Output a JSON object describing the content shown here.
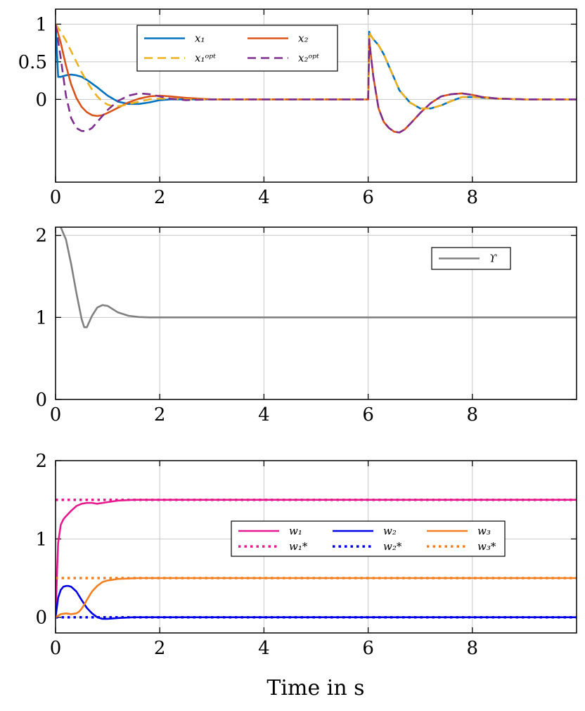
{
  "xlabel": "Time in s",
  "chart_data": [
    {
      "type": "line",
      "xlim": [
        0,
        10
      ],
      "ylim": [
        -1.1,
        1.2
      ],
      "xticks": [
        "0",
        "2",
        "4",
        "6",
        "8"
      ],
      "yticks": [
        "0",
        "0.5",
        "1"
      ],
      "grid": true,
      "legend_position": "top-center",
      "legend_columns": 2,
      "series": [
        {
          "name": "x₁",
          "color": "#0072BD",
          "style": "solid",
          "x": [
            0,
            0.05,
            0.1,
            0.2,
            0.3,
            0.4,
            0.5,
            0.6,
            0.8,
            1.0,
            1.2,
            1.4,
            1.6,
            1.8,
            2.0,
            2.2,
            2.5,
            3,
            4,
            5,
            6.0,
            6.02,
            6.05,
            6.1,
            6.2,
            6.3,
            6.4,
            6.5,
            6.6,
            6.8,
            7.0,
            7.2,
            7.4,
            7.6,
            7.8,
            8.0,
            8.5,
            9,
            10
          ],
          "y": [
            1,
            0.3,
            0.3,
            0.32,
            0.33,
            0.32,
            0.3,
            0.26,
            0.16,
            0.05,
            -0.03,
            -0.06,
            -0.06,
            -0.04,
            -0.01,
            0.0,
            0.0,
            0,
            0,
            0,
            0,
            0.9,
            0.85,
            0.8,
            0.72,
            0.6,
            0.44,
            0.28,
            0.12,
            -0.04,
            -0.12,
            -0.12,
            -0.08,
            -0.02,
            0.03,
            0.03,
            0.01,
            0,
            0
          ]
        },
        {
          "name": "x₂",
          "color": "#D95319",
          "style": "solid",
          "x": [
            0,
            0.1,
            0.2,
            0.3,
            0.4,
            0.5,
            0.6,
            0.7,
            0.8,
            0.9,
            1.0,
            1.2,
            1.4,
            1.6,
            1.8,
            2.0,
            2.2,
            2.5,
            3,
            4,
            5,
            6.0,
            6.02,
            6.05,
            6.1,
            6.2,
            6.3,
            6.4,
            6.5,
            6.6,
            6.7,
            6.8,
            7.0,
            7.2,
            7.4,
            7.6,
            7.8,
            8.0,
            8.2,
            8.5,
            9,
            10
          ],
          "y": [
            1,
            0.75,
            0.45,
            0.2,
            0.02,
            -0.1,
            -0.17,
            -0.21,
            -0.22,
            -0.21,
            -0.18,
            -0.11,
            -0.04,
            0.01,
            0.04,
            0.05,
            0.04,
            0.02,
            0,
            0,
            0,
            0,
            0.8,
            0.6,
            0.3,
            -0.12,
            -0.3,
            -0.38,
            -0.43,
            -0.44,
            -0.4,
            -0.33,
            -0.18,
            -0.05,
            0.04,
            0.07,
            0.08,
            0.06,
            0.03,
            0.01,
            0,
            0
          ]
        },
        {
          "name": "x₁ᵒᵖᵗ",
          "color": "#EDB120",
          "style": "dashed",
          "x": [
            0,
            0.1,
            0.2,
            0.3,
            0.4,
            0.5,
            0.6,
            0.7,
            0.8,
            0.9,
            1.0,
            1.1,
            1.2,
            1.3,
            1.4,
            1.6,
            1.8,
            2.0,
            2.2,
            2.5,
            3,
            4,
            5,
            6.0,
            6.02,
            6.05,
            6.1,
            6.2,
            6.3,
            6.4,
            6.5,
            6.6,
            6.8,
            7.0,
            7.2,
            7.4,
            7.6,
            7.8,
            8.0,
            8.5,
            9,
            10
          ],
          "y": [
            1,
            0.9,
            0.78,
            0.64,
            0.5,
            0.36,
            0.24,
            0.13,
            0.04,
            -0.03,
            -0.07,
            -0.09,
            -0.09,
            -0.08,
            -0.06,
            -0.03,
            0.0,
            0.01,
            0.01,
            0.0,
            0,
            0,
            0,
            0,
            0.9,
            0.85,
            0.8,
            0.72,
            0.6,
            0.44,
            0.28,
            0.12,
            -0.04,
            -0.12,
            -0.12,
            -0.08,
            -0.02,
            0.03,
            0.03,
            0.01,
            0,
            0
          ]
        },
        {
          "name": "x₂ᵒᵖᵗ",
          "color": "#7E2F8E",
          "style": "dashed",
          "x": [
            0,
            0.1,
            0.2,
            0.3,
            0.4,
            0.5,
            0.6,
            0.7,
            0.8,
            0.9,
            1.0,
            1.2,
            1.4,
            1.6,
            1.8,
            2.0,
            2.2,
            2.5,
            3,
            4,
            5,
            6.0,
            6.02,
            6.05,
            6.1,
            6.2,
            6.3,
            6.4,
            6.5,
            6.6,
            6.7,
            6.8,
            7.0,
            7.2,
            7.4,
            7.6,
            7.8,
            8.0,
            8.2,
            8.5,
            9,
            10
          ],
          "y": [
            1,
            0.55,
            0.05,
            -0.25,
            -0.38,
            -0.42,
            -0.42,
            -0.38,
            -0.3,
            -0.22,
            -0.14,
            -0.02,
            0.05,
            0.08,
            0.07,
            0.04,
            0.01,
            -0.01,
            0,
            0,
            0,
            0,
            0.8,
            0.6,
            0.3,
            -0.12,
            -0.3,
            -0.38,
            -0.43,
            -0.44,
            -0.4,
            -0.33,
            -0.18,
            -0.05,
            0.04,
            0.07,
            0.08,
            0.06,
            0.03,
            0.01,
            0,
            0
          ]
        }
      ]
    },
    {
      "type": "line",
      "xlim": [
        0,
        10
      ],
      "ylim": [
        0,
        2.1
      ],
      "xticks": [
        "0",
        "2",
        "4",
        "6",
        "8"
      ],
      "yticks": [
        "0",
        "1",
        "2"
      ],
      "grid": true,
      "legend_position": "top-right",
      "legend_columns": 1,
      "series": [
        {
          "name": "ϒ",
          "color": "#808080",
          "style": "solid",
          "x": [
            0.05,
            0.1,
            0.2,
            0.3,
            0.4,
            0.5,
            0.55,
            0.6,
            0.7,
            0.8,
            0.9,
            1.0,
            1.1,
            1.2,
            1.4,
            1.6,
            1.8,
            2.0,
            3,
            4,
            5,
            6,
            7,
            8,
            9,
            10
          ],
          "y": [
            2.15,
            2.1,
            1.95,
            1.65,
            1.3,
            0.98,
            0.88,
            0.88,
            1.02,
            1.12,
            1.15,
            1.14,
            1.1,
            1.06,
            1.02,
            1.005,
            1.0,
            1.0,
            1,
            1,
            1,
            1,
            1,
            1,
            1,
            1
          ]
        }
      ]
    },
    {
      "type": "line",
      "xlim": [
        0,
        10
      ],
      "ylim": [
        -0.2,
        2.0
      ],
      "xticks": [
        "0",
        "2",
        "4",
        "6",
        "8"
      ],
      "yticks": [
        "0",
        "1",
        "2"
      ],
      "grid": true,
      "legend_position": "center-right",
      "legend_columns": 3,
      "series": [
        {
          "name": "w₁",
          "color": "#E6198F",
          "style": "solid",
          "x": [
            0,
            0.03,
            0.05,
            0.1,
            0.15,
            0.2,
            0.3,
            0.4,
            0.5,
            0.6,
            0.7,
            0.8,
            0.9,
            1.0,
            1.2,
            1.5,
            2,
            3,
            4,
            5,
            6,
            7,
            8,
            9,
            10
          ],
          "y": [
            0,
            0.6,
            0.95,
            1.18,
            1.25,
            1.29,
            1.36,
            1.42,
            1.45,
            1.46,
            1.46,
            1.45,
            1.46,
            1.47,
            1.49,
            1.5,
            1.5,
            1.5,
            1.5,
            1.5,
            1.5,
            1.5,
            1.5,
            1.5,
            1.5
          ]
        },
        {
          "name": "w₁*",
          "color": "#E6198F",
          "style": "dotted",
          "x": [
            0,
            10
          ],
          "y": [
            1.5,
            1.5
          ]
        },
        {
          "name": "w₂",
          "color": "#0000E6",
          "style": "solid",
          "x": [
            0,
            0.05,
            0.1,
            0.15,
            0.2,
            0.25,
            0.3,
            0.4,
            0.5,
            0.6,
            0.7,
            0.8,
            0.9,
            1.0,
            1.2,
            1.5,
            2,
            4,
            6,
            8,
            10
          ],
          "y": [
            0,
            0.25,
            0.35,
            0.39,
            0.4,
            0.4,
            0.39,
            0.33,
            0.22,
            0.12,
            0.05,
            0.0,
            -0.02,
            -0.02,
            -0.01,
            0,
            0,
            0,
            0,
            0,
            0
          ]
        },
        {
          "name": "w₂*",
          "color": "#0000E6",
          "style": "dotted",
          "x": [
            0,
            10
          ],
          "y": [
            0,
            0
          ]
        },
        {
          "name": "w₃",
          "color": "#F28022",
          "style": "solid",
          "x": [
            0,
            0.1,
            0.2,
            0.3,
            0.4,
            0.45,
            0.5,
            0.55,
            0.6,
            0.7,
            0.8,
            0.9,
            1.0,
            1.1,
            1.2,
            1.4,
            1.6,
            2,
            3,
            4,
            6,
            8,
            10
          ],
          "y": [
            0,
            0.04,
            0.05,
            0.04,
            0.05,
            0.07,
            0.11,
            0.16,
            0.22,
            0.33,
            0.4,
            0.45,
            0.47,
            0.48,
            0.49,
            0.495,
            0.5,
            0.5,
            0.5,
            0.5,
            0.5,
            0.5,
            0.5
          ]
        },
        {
          "name": "w₃*",
          "color": "#F28022",
          "style": "dotted",
          "x": [
            0,
            10
          ],
          "y": [
            0.5,
            0.5
          ]
        }
      ]
    }
  ]
}
